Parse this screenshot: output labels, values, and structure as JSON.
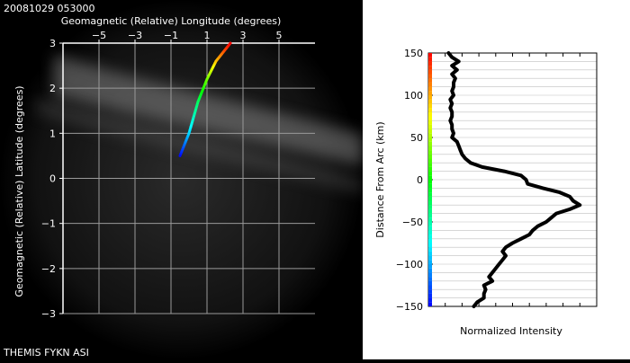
{
  "header": {
    "timestamp": "20081029 053000"
  },
  "footer": {
    "label": "THEMIS FYKN ASI"
  },
  "chart_data": [
    {
      "type": "scatter",
      "title": "Geomagnetic (Relative) Longitude (degrees)",
      "xlabel": "Geomagnetic (Relative) Longitude (degrees)",
      "ylabel": "Geomagnetic (Relative) Latitude (degrees)",
      "xlim": [
        -7,
        7
      ],
      "ylim": [
        -3,
        3
      ],
      "xticks": [
        -5,
        -3,
        -1,
        1,
        3,
        5
      ],
      "yticks": [
        3,
        2,
        1,
        0,
        -1,
        -2,
        -3
      ],
      "grid": true,
      "series": [
        {
          "points": [
            {
              "x": -0.5,
              "y": 0.5
            },
            {
              "x": 0.0,
              "y": 1.0
            },
            {
              "x": 0.5,
              "y": 1.7
            },
            {
              "x": 1.0,
              "y": 2.2
            },
            {
              "x": 1.5,
              "y": 2.6
            },
            {
              "x": 2.3,
              "y": 3.0
            }
          ]
        }
      ],
      "colors": {
        "background": "#000000",
        "grid": "#9a9a9a",
        "axis": "#ffffff",
        "text": "#ffffff"
      }
    },
    {
      "type": "line",
      "xlabel": "Normalized Intensity",
      "ylabel": "Distance From Arc (km)",
      "xlim": [
        0,
        1
      ],
      "ylim": [
        -150,
        150
      ],
      "yticks": [
        150,
        100,
        50,
        0,
        -50,
        -100,
        -150
      ],
      "grid": true,
      "series": [
        {
          "points": [
            {
              "x": 0.12,
              "y": 150
            },
            {
              "x": 0.14,
              "y": 145
            },
            {
              "x": 0.18,
              "y": 140
            },
            {
              "x": 0.14,
              "y": 135
            },
            {
              "x": 0.17,
              "y": 130
            },
            {
              "x": 0.14,
              "y": 125
            },
            {
              "x": 0.16,
              "y": 120
            },
            {
              "x": 0.15,
              "y": 115
            },
            {
              "x": 0.15,
              "y": 110
            },
            {
              "x": 0.14,
              "y": 105
            },
            {
              "x": 0.15,
              "y": 100
            },
            {
              "x": 0.13,
              "y": 95
            },
            {
              "x": 0.14,
              "y": 90
            },
            {
              "x": 0.13,
              "y": 85
            },
            {
              "x": 0.14,
              "y": 80
            },
            {
              "x": 0.14,
              "y": 75
            },
            {
              "x": 0.13,
              "y": 70
            },
            {
              "x": 0.14,
              "y": 65
            },
            {
              "x": 0.14,
              "y": 60
            },
            {
              "x": 0.15,
              "y": 55
            },
            {
              "x": 0.14,
              "y": 50
            },
            {
              "x": 0.17,
              "y": 45
            },
            {
              "x": 0.18,
              "y": 40
            },
            {
              "x": 0.19,
              "y": 35
            },
            {
              "x": 0.2,
              "y": 30
            },
            {
              "x": 0.22,
              "y": 25
            },
            {
              "x": 0.25,
              "y": 20
            },
            {
              "x": 0.32,
              "y": 15
            },
            {
              "x": 0.45,
              "y": 10
            },
            {
              "x": 0.55,
              "y": 5
            },
            {
              "x": 0.58,
              "y": 0
            },
            {
              "x": 0.59,
              "y": -5
            },
            {
              "x": 0.68,
              "y": -10
            },
            {
              "x": 0.78,
              "y": -15
            },
            {
              "x": 0.84,
              "y": -20
            },
            {
              "x": 0.86,
              "y": -25
            },
            {
              "x": 0.9,
              "y": -30
            },
            {
              "x": 0.84,
              "y": -35
            },
            {
              "x": 0.76,
              "y": -40
            },
            {
              "x": 0.73,
              "y": -45
            },
            {
              "x": 0.7,
              "y": -50
            },
            {
              "x": 0.65,
              "y": -55
            },
            {
              "x": 0.62,
              "y": -60
            },
            {
              "x": 0.6,
              "y": -65
            },
            {
              "x": 0.55,
              "y": -70
            },
            {
              "x": 0.5,
              "y": -75
            },
            {
              "x": 0.46,
              "y": -80
            },
            {
              "x": 0.44,
              "y": -85
            },
            {
              "x": 0.46,
              "y": -90
            },
            {
              "x": 0.44,
              "y": -95
            },
            {
              "x": 0.42,
              "y": -100
            },
            {
              "x": 0.4,
              "y": -105
            },
            {
              "x": 0.38,
              "y": -110
            },
            {
              "x": 0.36,
              "y": -115
            },
            {
              "x": 0.38,
              "y": -120
            },
            {
              "x": 0.33,
              "y": -125
            },
            {
              "x": 0.34,
              "y": -130
            },
            {
              "x": 0.33,
              "y": -135
            },
            {
              "x": 0.33,
              "y": -140
            },
            {
              "x": 0.29,
              "y": -145
            },
            {
              "x": 0.27,
              "y": -150
            }
          ]
        }
      ],
      "colors": {
        "background": "#ffffff",
        "grid": "#bfbfbf",
        "axis": "#000000",
        "line": "#000000",
        "text": "#000000"
      }
    }
  ]
}
